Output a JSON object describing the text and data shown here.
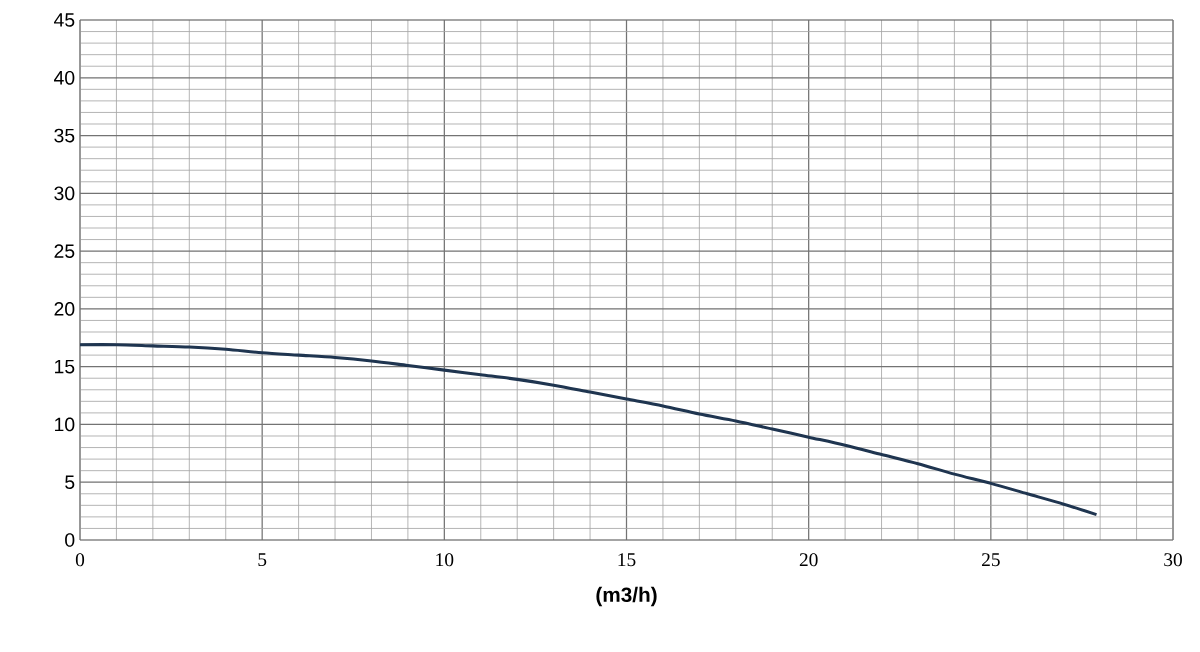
{
  "chart_data": {
    "type": "line",
    "xlabel": "(m3/h)",
    "x": [
      0,
      1,
      2,
      3,
      4,
      5,
      6,
      7,
      8,
      9,
      10,
      11,
      12,
      13,
      14,
      15,
      16,
      17,
      18,
      19,
      20,
      21,
      22,
      23,
      24,
      25,
      26,
      27,
      27.9
    ],
    "series": [
      {
        "color": "#1f3550",
        "values": [
          16.9,
          16.9,
          16.8,
          16.7,
          16.5,
          16.2,
          16.0,
          15.8,
          15.5,
          15.1,
          14.7,
          14.3,
          13.9,
          13.4,
          12.8,
          12.2,
          11.6,
          10.9,
          10.3,
          9.6,
          8.9,
          8.2,
          7.4,
          6.6,
          5.7,
          4.9,
          4.0,
          3.1,
          2.2
        ]
      }
    ],
    "xlim": [
      0,
      30
    ],
    "ylim": [
      0,
      45
    ],
    "xticks": [
      0,
      5,
      10,
      15,
      20,
      25,
      30
    ],
    "yticks": [
      0,
      5,
      10,
      15,
      20,
      25,
      30,
      35,
      40,
      45
    ],
    "grid": true,
    "marker": "none",
    "line_style": "solid"
  }
}
